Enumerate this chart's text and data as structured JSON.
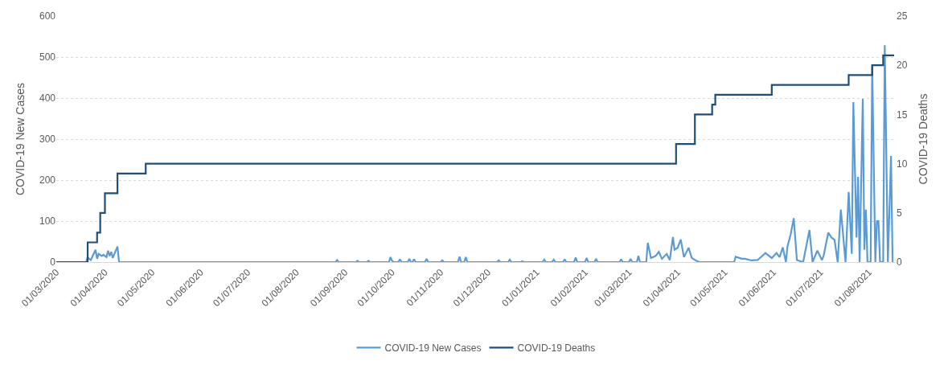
{
  "chart_data": {
    "type": "line",
    "ylabel": "COVID-19 New Cases",
    "y2label": "COVID-19 Deaths",
    "xlim": [
      "2020-03-01",
      "2021-08-18"
    ],
    "xticks": [
      {
        "value": "2020-03-01",
        "label": "01/03/2020"
      },
      {
        "value": "2020-04-01",
        "label": "01/04/2020"
      },
      {
        "value": "2020-05-01",
        "label": "01/05/2020"
      },
      {
        "value": "2020-06-01",
        "label": "01/06/2020"
      },
      {
        "value": "2020-07-01",
        "label": "01/07/2020"
      },
      {
        "value": "2020-08-01",
        "label": "01/08/2020"
      },
      {
        "value": "2020-09-01",
        "label": "01/09/2020"
      },
      {
        "value": "2020-10-01",
        "label": "01/10/2020"
      },
      {
        "value": "2020-11-01",
        "label": "01/11/2020"
      },
      {
        "value": "2020-12-01",
        "label": "01/12/2020"
      },
      {
        "value": "2021-01-01",
        "label": "01/01/2021"
      },
      {
        "value": "2021-02-01",
        "label": "01/02/2021"
      },
      {
        "value": "2021-03-01",
        "label": "01/03/2021"
      },
      {
        "value": "2021-04-01",
        "label": "01/04/2021"
      },
      {
        "value": "2021-05-01",
        "label": "01/05/2021"
      },
      {
        "value": "2021-06-01",
        "label": "01/06/2021"
      },
      {
        "value": "2021-07-01",
        "label": "01/07/2021"
      },
      {
        "value": "2021-08-01",
        "label": "01/08/2021"
      }
    ],
    "ylim": [
      0,
      600
    ],
    "yticks": [
      0,
      100,
      200,
      300,
      400,
      500,
      600
    ],
    "y2lim": [
      0,
      25
    ],
    "y2ticks": [
      0,
      5,
      10,
      15,
      20,
      25
    ],
    "grid": "y",
    "legend": "bottom",
    "series": [
      {
        "name": "COVID-19 New Cases",
        "color": "#5b9bd5",
        "x": [
          "2020-03-01",
          "2020-03-20",
          "2020-03-21",
          "2020-03-22",
          "2020-03-23",
          "2020-03-26",
          "2020-03-27",
          "2020-03-28",
          "2020-03-30",
          "2020-03-31",
          "2020-04-02",
          "2020-04-03",
          "2020-04-04",
          "2020-04-05",
          "2020-04-06",
          "2020-04-09",
          "2020-04-10",
          "2020-08-26",
          "2020-08-27",
          "2020-08-28",
          "2020-09-08",
          "2020-09-09",
          "2020-09-10",
          "2020-09-15",
          "2020-09-16",
          "2020-09-17",
          "2020-09-29",
          "2020-09-30",
          "2020-10-01",
          "2020-10-02",
          "2020-10-05",
          "2020-10-06",
          "2020-10-07",
          "2020-10-11",
          "2020-10-12",
          "2020-10-13",
          "2020-10-14",
          "2020-10-15",
          "2020-10-16",
          "2020-10-22",
          "2020-10-23",
          "2020-10-24",
          "2020-11-01",
          "2020-11-02",
          "2020-11-03",
          "2020-11-12",
          "2020-11-13",
          "2020-11-14",
          "2020-11-16",
          "2020-11-17",
          "2020-11-18",
          "2020-12-07",
          "2020-12-08",
          "2020-12-09",
          "2020-12-14",
          "2020-12-15",
          "2020-12-16",
          "2020-12-22",
          "2020-12-23",
          "2020-12-24",
          "2021-01-05",
          "2021-01-06",
          "2021-01-07",
          "2021-01-11",
          "2021-01-12",
          "2021-01-13",
          "2021-01-18",
          "2021-01-19",
          "2021-01-20",
          "2021-01-25",
          "2021-01-26",
          "2021-01-27",
          "2021-02-01",
          "2021-02-02",
          "2021-02-03",
          "2021-02-07",
          "2021-02-08",
          "2021-02-09",
          "2021-02-23",
          "2021-02-24",
          "2021-02-25",
          "2021-03-01",
          "2021-03-02",
          "2021-03-03",
          "2021-03-06",
          "2021-03-07",
          "2021-03-08",
          "2021-03-12",
          "2021-03-13",
          "2021-03-15",
          "2021-03-18",
          "2021-03-20",
          "2021-03-22",
          "2021-03-25",
          "2021-03-27",
          "2021-03-29",
          "2021-03-30",
          "2021-04-01",
          "2021-04-03",
          "2021-04-05",
          "2021-04-08",
          "2021-04-10",
          "2021-04-13",
          "2021-04-15",
          "2021-05-07",
          "2021-05-08",
          "2021-05-12",
          "2021-05-14",
          "2021-05-18",
          "2021-05-22",
          "2021-05-27",
          "2021-05-31",
          "2021-06-03",
          "2021-06-05",
          "2021-06-07",
          "2021-06-09",
          "2021-06-10",
          "2021-06-12",
          "2021-06-14",
          "2021-06-16",
          "2021-06-20",
          "2021-06-24",
          "2021-06-26",
          "2021-06-29",
          "2021-07-02",
          "2021-07-03",
          "2021-07-06",
          "2021-07-08",
          "2021-07-10",
          "2021-07-12",
          "2021-07-14",
          "2021-07-17",
          "2021-07-19",
          "2021-07-21",
          "2021-07-22",
          "2021-07-24",
          "2021-07-25",
          "2021-07-26",
          "2021-07-28",
          "2021-07-29",
          "2021-07-30",
          "2021-07-31",
          "2021-08-02",
          "2021-08-03",
          "2021-08-05",
          "2021-08-06",
          "2021-08-07",
          "2021-08-08",
          "2021-08-10",
          "2021-08-11",
          "2021-08-13",
          "2021-08-15",
          "2021-08-16"
        ],
        "values": [
          0,
          0,
          12,
          8,
          5,
          30,
          8,
          20,
          15,
          18,
          12,
          28,
          15,
          25,
          10,
          38,
          0,
          0,
          5,
          0,
          0,
          3,
          0,
          0,
          3,
          0,
          0,
          12,
          3,
          0,
          0,
          7,
          0,
          0,
          8,
          0,
          0,
          7,
          0,
          0,
          8,
          0,
          0,
          4,
          0,
          0,
          13,
          0,
          0,
          12,
          0,
          0,
          4,
          0,
          0,
          6,
          0,
          0,
          2,
          0,
          0,
          6,
          0,
          0,
          6,
          0,
          0,
          7,
          0,
          0,
          11,
          0,
          0,
          10,
          0,
          0,
          8,
          0,
          0,
          7,
          0,
          0,
          8,
          0,
          0,
          15,
          0,
          0,
          47,
          10,
          15,
          25,
          8,
          20,
          5,
          61,
          30,
          35,
          55,
          12,
          35,
          10,
          3,
          0,
          0,
          13,
          8,
          8,
          4,
          5,
          22,
          10,
          22,
          12,
          36,
          0,
          38,
          67,
          107,
          5,
          0,
          78,
          0,
          28,
          5,
          15,
          72,
          60,
          54,
          0,
          128,
          0,
          171,
          20,
          390,
          60,
          208,
          0,
          398,
          30,
          128,
          0,
          0,
          480,
          0,
          100,
          100,
          0,
          0,
          529,
          0,
          259,
          0
        ]
      },
      {
        "name": "COVID-19 Deaths",
        "type": "step",
        "axis": "y2",
        "color": "#1f4e79",
        "x": [
          "2020-03-01",
          "2020-03-21",
          "2020-03-27",
          "2020-03-29",
          "2020-04-01",
          "2020-04-09",
          "2020-04-27",
          "2021-03-31",
          "2021-04-12",
          "2021-04-23",
          "2021-04-25",
          "2021-05-31",
          "2021-07-19",
          "2021-08-03",
          "2021-08-10",
          "2021-08-17"
        ],
        "values": [
          0,
          2,
          3,
          5,
          7,
          9,
          10,
          12,
          15,
          16,
          17,
          18,
          19,
          20,
          21,
          21
        ]
      }
    ]
  }
}
